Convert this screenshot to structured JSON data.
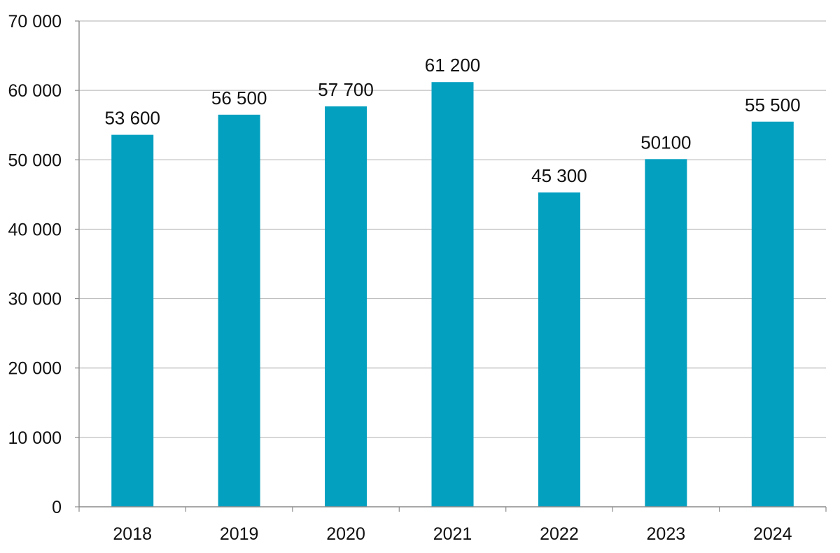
{
  "chart_data": {
    "type": "bar",
    "categories": [
      "2018",
      "2019",
      "2020",
      "2021",
      "2022",
      "2023",
      "2024"
    ],
    "values": [
      53600,
      56500,
      57700,
      61200,
      45300,
      50100,
      55500
    ],
    "data_labels": [
      "53 600",
      "56 500",
      "57 700",
      "61 200",
      "45 300",
      "50100",
      "55 500"
    ],
    "title": "",
    "xlabel": "",
    "ylabel": "",
    "ylim": [
      0,
      70000
    ],
    "yticks": [
      0,
      10000,
      20000,
      30000,
      40000,
      50000,
      60000,
      70000
    ],
    "ytick_labels": [
      "0",
      "10 000",
      "20 000",
      "30 000",
      "40 000",
      "50 000",
      "60 000",
      "70 000"
    ],
    "grid": true,
    "legend": "none",
    "bar_color": "#03a0c0",
    "grid_color": "#bfbfbf",
    "axis_color": "#8c8c8c"
  }
}
